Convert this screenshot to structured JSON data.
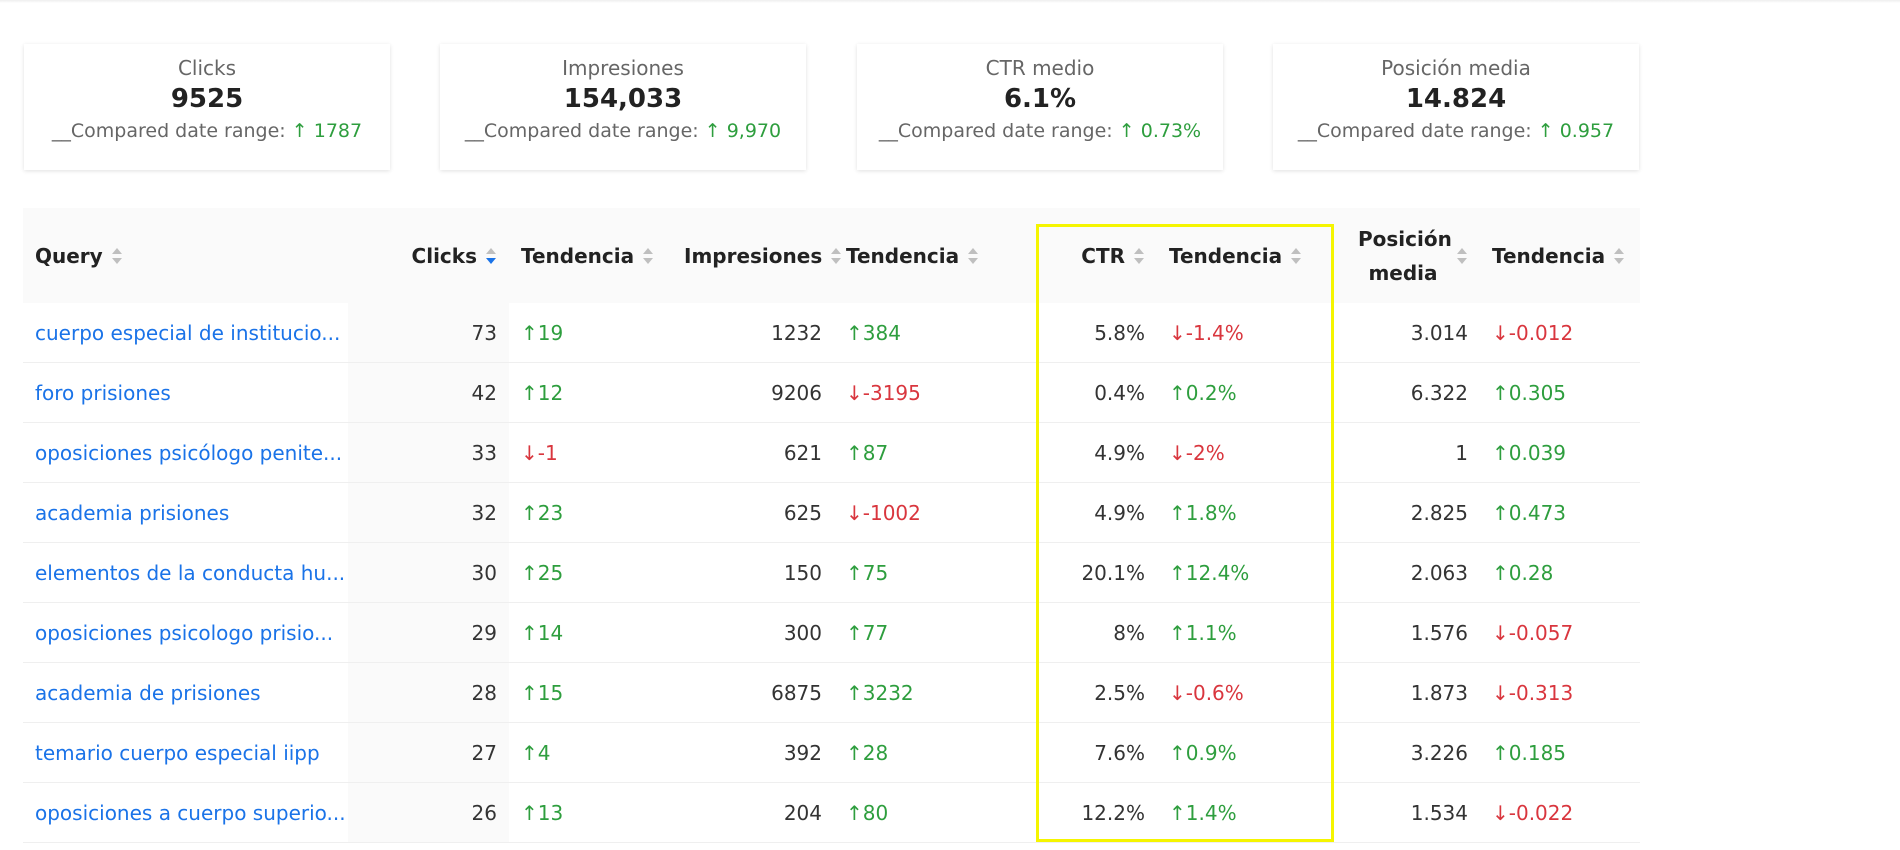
{
  "cards": [
    {
      "title": "Clicks",
      "value": "9525",
      "compare_label": "__Compared date range:",
      "delta": "↑ 1787"
    },
    {
      "title": "Impresiones",
      "value": "154,033",
      "compare_label": "__Compared date range:",
      "delta": "↑ 9,970"
    },
    {
      "title": "CTR medio",
      "value": "6.1%",
      "compare_label": "__Compared date range:",
      "delta": "↑ 0.73%"
    },
    {
      "title": "Posición media",
      "value": "14.824",
      "compare_label": "__Compared date range:",
      "delta": "↑ 0.957"
    }
  ],
  "table": {
    "columns": [
      "Query",
      "Clicks",
      "Tendencia",
      "Impresiones",
      "Tendencia",
      "CTR",
      "Tendencia",
      "Posición media",
      "Tendencia"
    ],
    "rows": [
      [
        "cuerpo especial de institucio...",
        "73",
        "↑19",
        "1232",
        "↑384",
        "5.8%",
        "↓-1.4%",
        "3.014",
        "↓-0.012"
      ],
      [
        "foro prisiones",
        "42",
        "↑12",
        "9206",
        "↓-3195",
        "0.4%",
        "↑0.2%",
        "6.322",
        "↑0.305"
      ],
      [
        "oposiciones psicólogo penite...",
        "33",
        "↓-1",
        "621",
        "↑87",
        "4.9%",
        "↓-2%",
        "1",
        "↑0.039"
      ],
      [
        "academia prisiones",
        "32",
        "↑23",
        "625",
        "↓-1002",
        "4.9%",
        "↑1.8%",
        "2.825",
        "↑0.473"
      ],
      [
        "elementos de la conducta hu...",
        "30",
        "↑25",
        "150",
        "↑75",
        "20.1%",
        "↑12.4%",
        "2.063",
        "↑0.28"
      ],
      [
        "oposiciones psicologo prisio...",
        "29",
        "↑14",
        "300",
        "↑77",
        "8%",
        "↑1.1%",
        "1.576",
        "↓-0.057"
      ],
      [
        "academia de prisiones",
        "28",
        "↑15",
        "6875",
        "↑3232",
        "2.5%",
        "↓-0.6%",
        "1.873",
        "↓-0.313"
      ],
      [
        "temario cuerpo especial iipp",
        "27",
        "↑4",
        "392",
        "↑28",
        "7.6%",
        "↑0.9%",
        "3.226",
        "↑0.185"
      ],
      [
        "oposiciones a cuerpo superio...",
        "26",
        "↑13",
        "204",
        "↑80",
        "12.2%",
        "↑1.4%",
        "1.534",
        "↓-0.022"
      ]
    ]
  }
}
